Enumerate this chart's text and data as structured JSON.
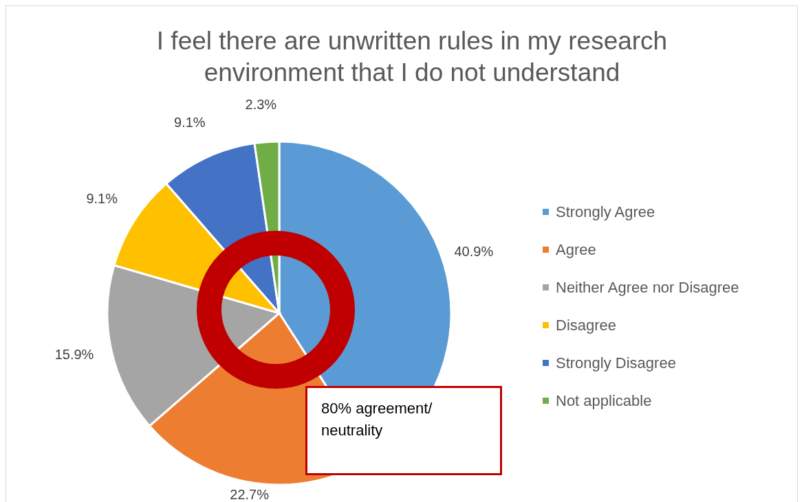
{
  "chart_data": {
    "type": "pie",
    "title": "I feel there are unwritten rules in my research environment that I do not understand",
    "categories": [
      "Strongly Agree",
      "Agree",
      "Neither Agree nor Disagree",
      "Disagree",
      "Strongly Disagree",
      "Not applicable"
    ],
    "values": [
      40.9,
      22.7,
      15.9,
      9.1,
      9.1,
      2.3
    ],
    "value_labels": [
      "40.9%",
      "22.7%",
      "15.9%",
      "9.1%",
      "9.1%",
      "2.3%"
    ],
    "colors": [
      "#5b9bd5",
      "#ed7d31",
      "#a5a5a5",
      "#ffc000",
      "#4472c4",
      "#70ad47"
    ],
    "legend": "right",
    "annotations": [
      "80% agreement/ neutrality"
    ]
  }
}
